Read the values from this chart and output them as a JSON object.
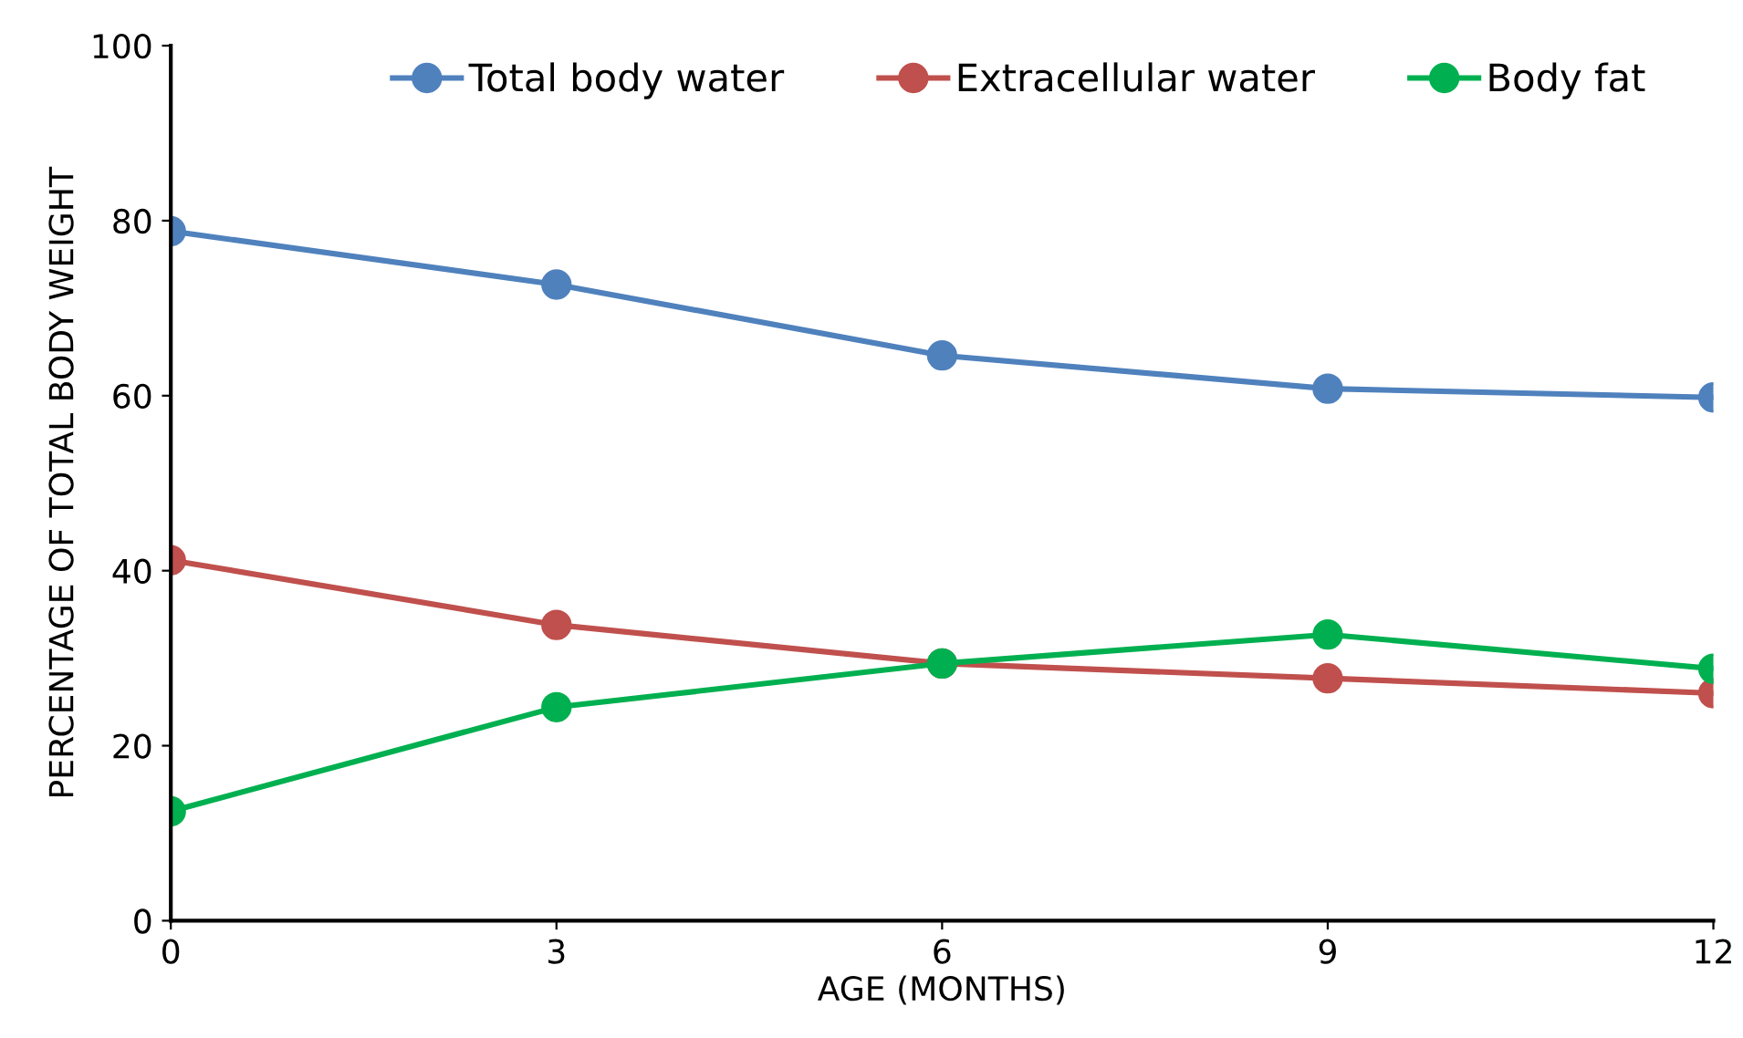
{
  "chart_data": {
    "type": "line",
    "xlabel": "AGE (MONTHS)",
    "ylabel": "PERCENTAGE OF TOTAL BODY WEIGHT",
    "x": [
      0,
      3,
      6,
      9,
      12
    ],
    "series": [
      {
        "name": "Total body water",
        "color": "#4f81bd",
        "values": [
          78.8,
          72.7,
          64.6,
          60.8,
          59.8
        ]
      },
      {
        "name": "Extracellular water",
        "color": "#c0504d",
        "values": [
          41.2,
          33.8,
          29.4,
          27.7,
          26.0
        ]
      },
      {
        "name": "Body fat",
        "color": "#00b050",
        "values": [
          12.5,
          24.4,
          29.4,
          32.7,
          28.8
        ]
      }
    ],
    "xlim": [
      0,
      12
    ],
    "xticks": [
      0,
      3,
      6,
      9,
      12
    ],
    "ylim": [
      0,
      100
    ],
    "yticks": [
      0,
      20,
      40,
      60,
      80,
      100
    ],
    "grid": false,
    "legend": "top",
    "marker": "circle",
    "line_style": "solid"
  }
}
